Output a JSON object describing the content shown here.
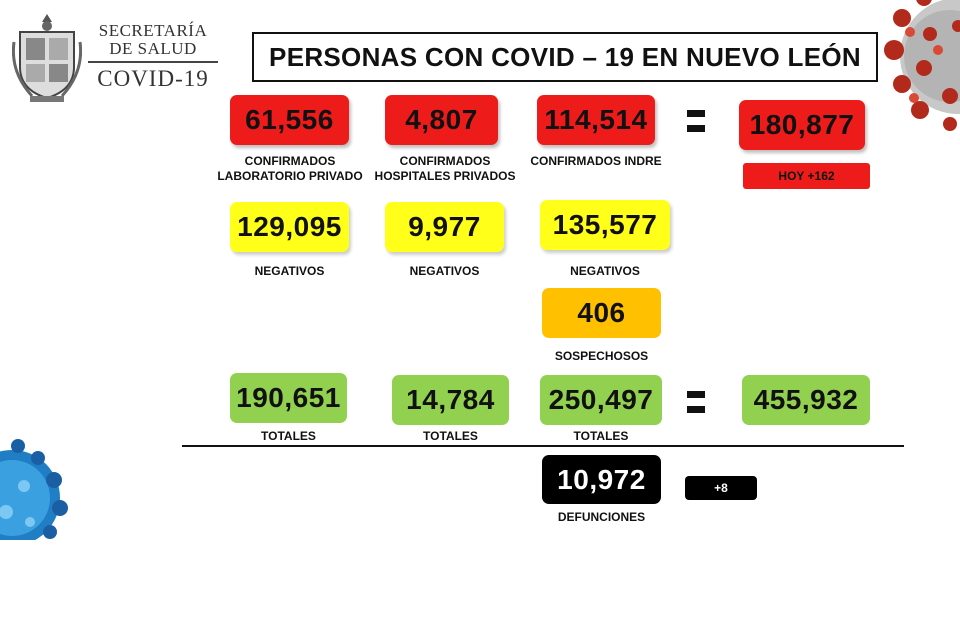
{
  "header": {
    "org_line1": "SECRETARÍA",
    "org_line2": "DE SALUD",
    "org_line3": "COVID-19",
    "title": "PERSONAS CON COVID – 19 EN NUEVO LEÓN"
  },
  "confirmados": {
    "privado": {
      "value": "61,556",
      "label_1": "CONFIRMADOS",
      "label_2": "LABORATORIO PRIVADO"
    },
    "hospitales": {
      "value": "4,807",
      "label_1": "CONFIRMADOS",
      "label_2": "HOSPITALES PRIVADOS"
    },
    "indre": {
      "value": "114,514",
      "label_1": "CONFIRMADOS INDRE"
    },
    "total": {
      "value": "180,877"
    },
    "hoy": "HOY +162"
  },
  "negativos": {
    "privado": {
      "value": "129,095",
      "label": "NEGATIVOS"
    },
    "hospitales": {
      "value": "9,977",
      "label": "NEGATIVOS"
    },
    "indre": {
      "value": "135,577",
      "label": "NEGATIVOS"
    }
  },
  "sospechosos": {
    "value": "406",
    "label": "SOSPECHOSOS"
  },
  "totales": {
    "privado": {
      "value": "190,651",
      "label": "TOTALES"
    },
    "hospitales": {
      "value": "14,784",
      "label": "TOTALES"
    },
    "indre": {
      "value": "250,497",
      "label": "TOTALES"
    },
    "gran_total": {
      "value": "455,932"
    }
  },
  "defunciones": {
    "value": "10,972",
    "label": "DEFUNCIONES",
    "delta": "+8"
  },
  "colors": {
    "red": "#ee1b1b",
    "yellow": "#ffff19",
    "orange": "#ffc000",
    "green": "#92d050",
    "black": "#000000"
  },
  "icons": [
    "state-seal-logo",
    "coronavirus-red-image",
    "coronavirus-blue-image",
    "equals-sign"
  ]
}
